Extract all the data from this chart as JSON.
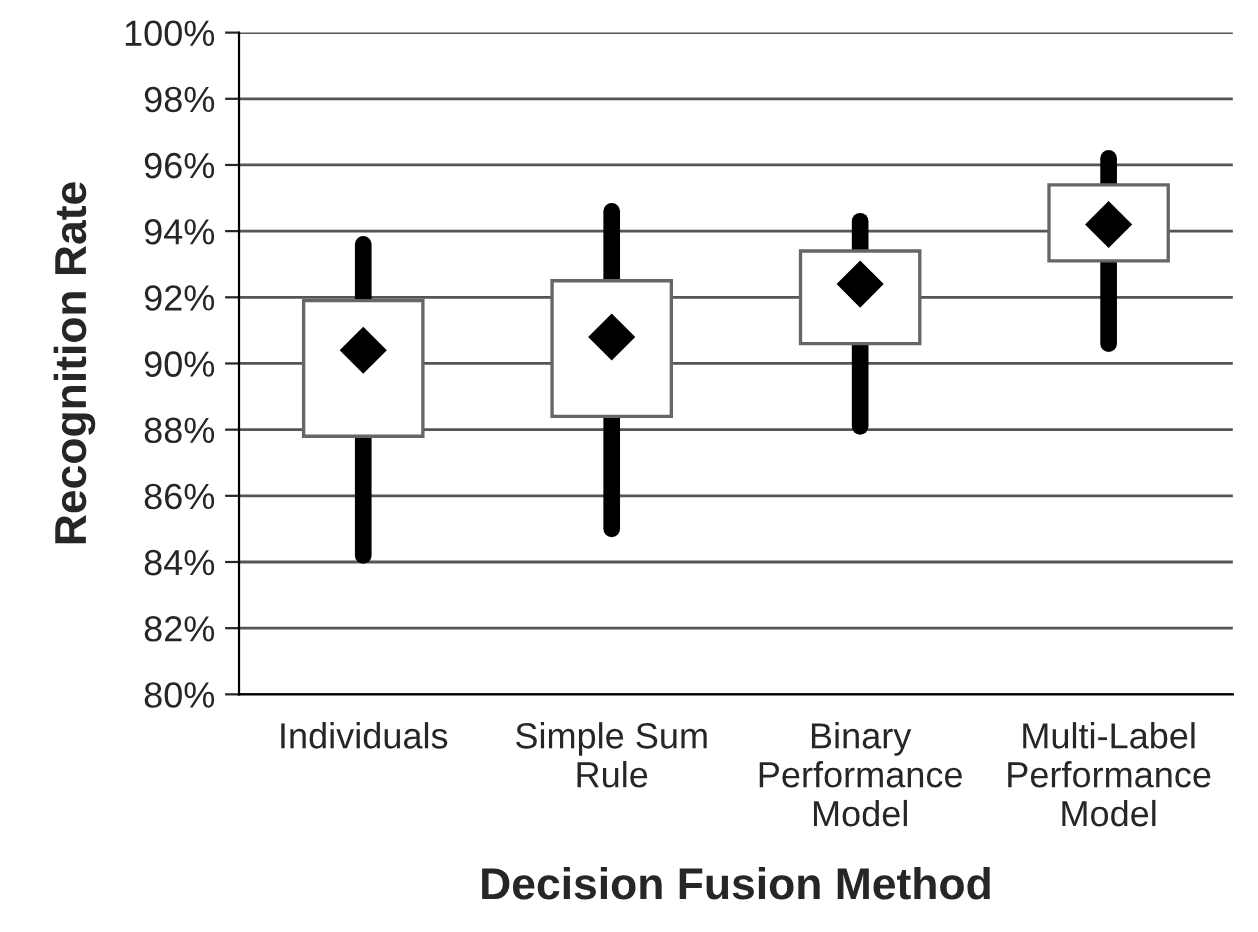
{
  "chart_data": {
    "type": "box",
    "xlabel": "Decision Fusion Method",
    "ylabel": "Recognition Rate",
    "categories": [
      "Individuals",
      "Simple Sum\nRule",
      "Binary\nPerformance\nModel",
      "Multi-Label\nPerformance\nModel"
    ],
    "boxes": [
      {
        "low": 84.2,
        "q1": 87.8,
        "q3": 91.9,
        "high": 93.6,
        "mean": 90.4
      },
      {
        "low": 85.0,
        "q1": 88.4,
        "q3": 92.5,
        "high": 94.6,
        "mean": 90.8
      },
      {
        "low": 88.1,
        "q1": 90.6,
        "q3": 93.4,
        "high": 94.3,
        "mean": 92.4
      },
      {
        "low": 90.6,
        "q1": 93.1,
        "q3": 95.4,
        "high": 96.2,
        "mean": 94.2
      }
    ],
    "ylim": [
      80,
      100
    ],
    "yticks": [
      {
        "value": 80,
        "label": "80%"
      },
      {
        "value": 82,
        "label": "82%"
      },
      {
        "value": 84,
        "label": "84%"
      },
      {
        "value": 86,
        "label": "86%"
      },
      {
        "value": 88,
        "label": "88%"
      },
      {
        "value": 90,
        "label": "90%"
      },
      {
        "value": 92,
        "label": "92%"
      },
      {
        "value": 94,
        "label": "94%"
      },
      {
        "value": 96,
        "label": "96%"
      },
      {
        "value": 98,
        "label": "98%"
      },
      {
        "value": 100,
        "label": "100%"
      }
    ],
    "grid": "y",
    "marker": "diamond",
    "color": "#ffffff"
  }
}
